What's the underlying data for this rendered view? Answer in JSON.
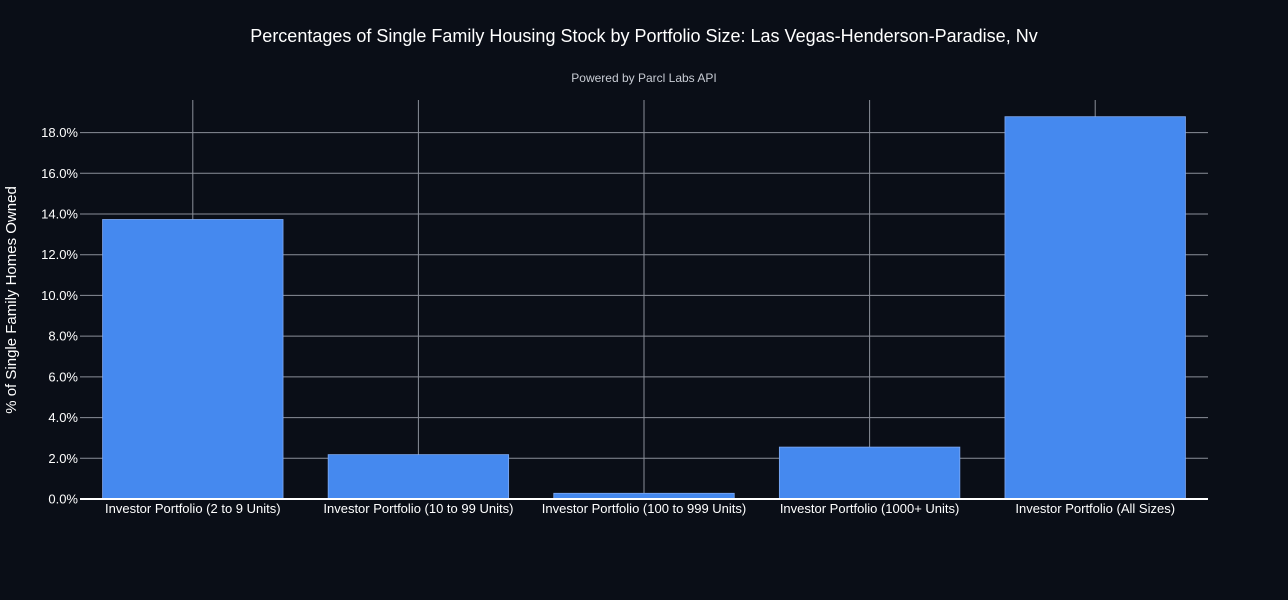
{
  "chart_data": {
    "type": "bar",
    "title": "Percentages of Single Family Housing Stock by Portfolio Size: Las Vegas-Henderson-Paradise, Nv",
    "subtitle": "Powered by Parcl Labs API",
    "xlabel": "",
    "ylabel": "% of Single Family Homes Owned",
    "categories": [
      "Investor Portfolio (2 to 9 Units)",
      "Investor Portfolio (10 to 99 Units)",
      "Investor Portfolio (100 to 999 Units)",
      "Investor Portfolio (1000+ Units)",
      "Investor Portfolio (All Sizes)"
    ],
    "values": [
      13.73,
      2.18,
      0.28,
      2.55,
      18.78
    ],
    "yticks": [
      0,
      2,
      4,
      6,
      8,
      10,
      12,
      14,
      16,
      18
    ],
    "ytick_labels": [
      "0.0%",
      "2.0%",
      "4.0%",
      "6.0%",
      "8.0%",
      "10.0%",
      "12.0%",
      "14.0%",
      "16.0%",
      "18.0%"
    ],
    "ylim": [
      0,
      19.6
    ],
    "grid": true,
    "colors": {
      "background": "#0a0e17",
      "bar": "#4589ef",
      "bar_outline": "#7faaf3",
      "grid": "#8a8f99",
      "text": "#ffffff"
    }
  }
}
